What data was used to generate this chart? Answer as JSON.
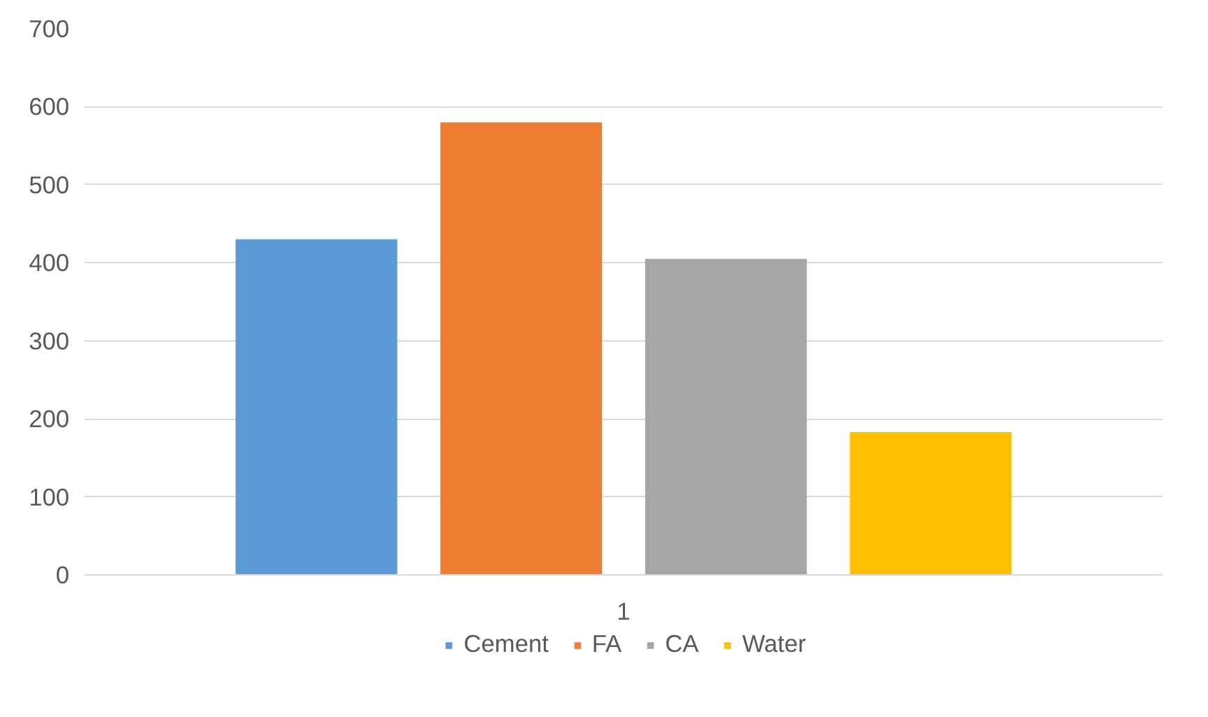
{
  "chart_data": {
    "type": "bar",
    "categories": [
      "1"
    ],
    "series": [
      {
        "name": "Cement",
        "color": "#5b9bd5",
        "values": [
          430
        ]
      },
      {
        "name": "FA",
        "color": "#ed7d31",
        "values": [
          580
        ]
      },
      {
        "name": "CA",
        "color": "#a5a5a5",
        "values": [
          405
        ]
      },
      {
        "name": "Water",
        "color": "#ffc000",
        "values": [
          183
        ]
      }
    ],
    "ylim": [
      0,
      700
    ],
    "yticks": [
      0,
      100,
      200,
      300,
      400,
      500,
      600,
      700
    ],
    "grid": "y",
    "legend": "bottom"
  }
}
